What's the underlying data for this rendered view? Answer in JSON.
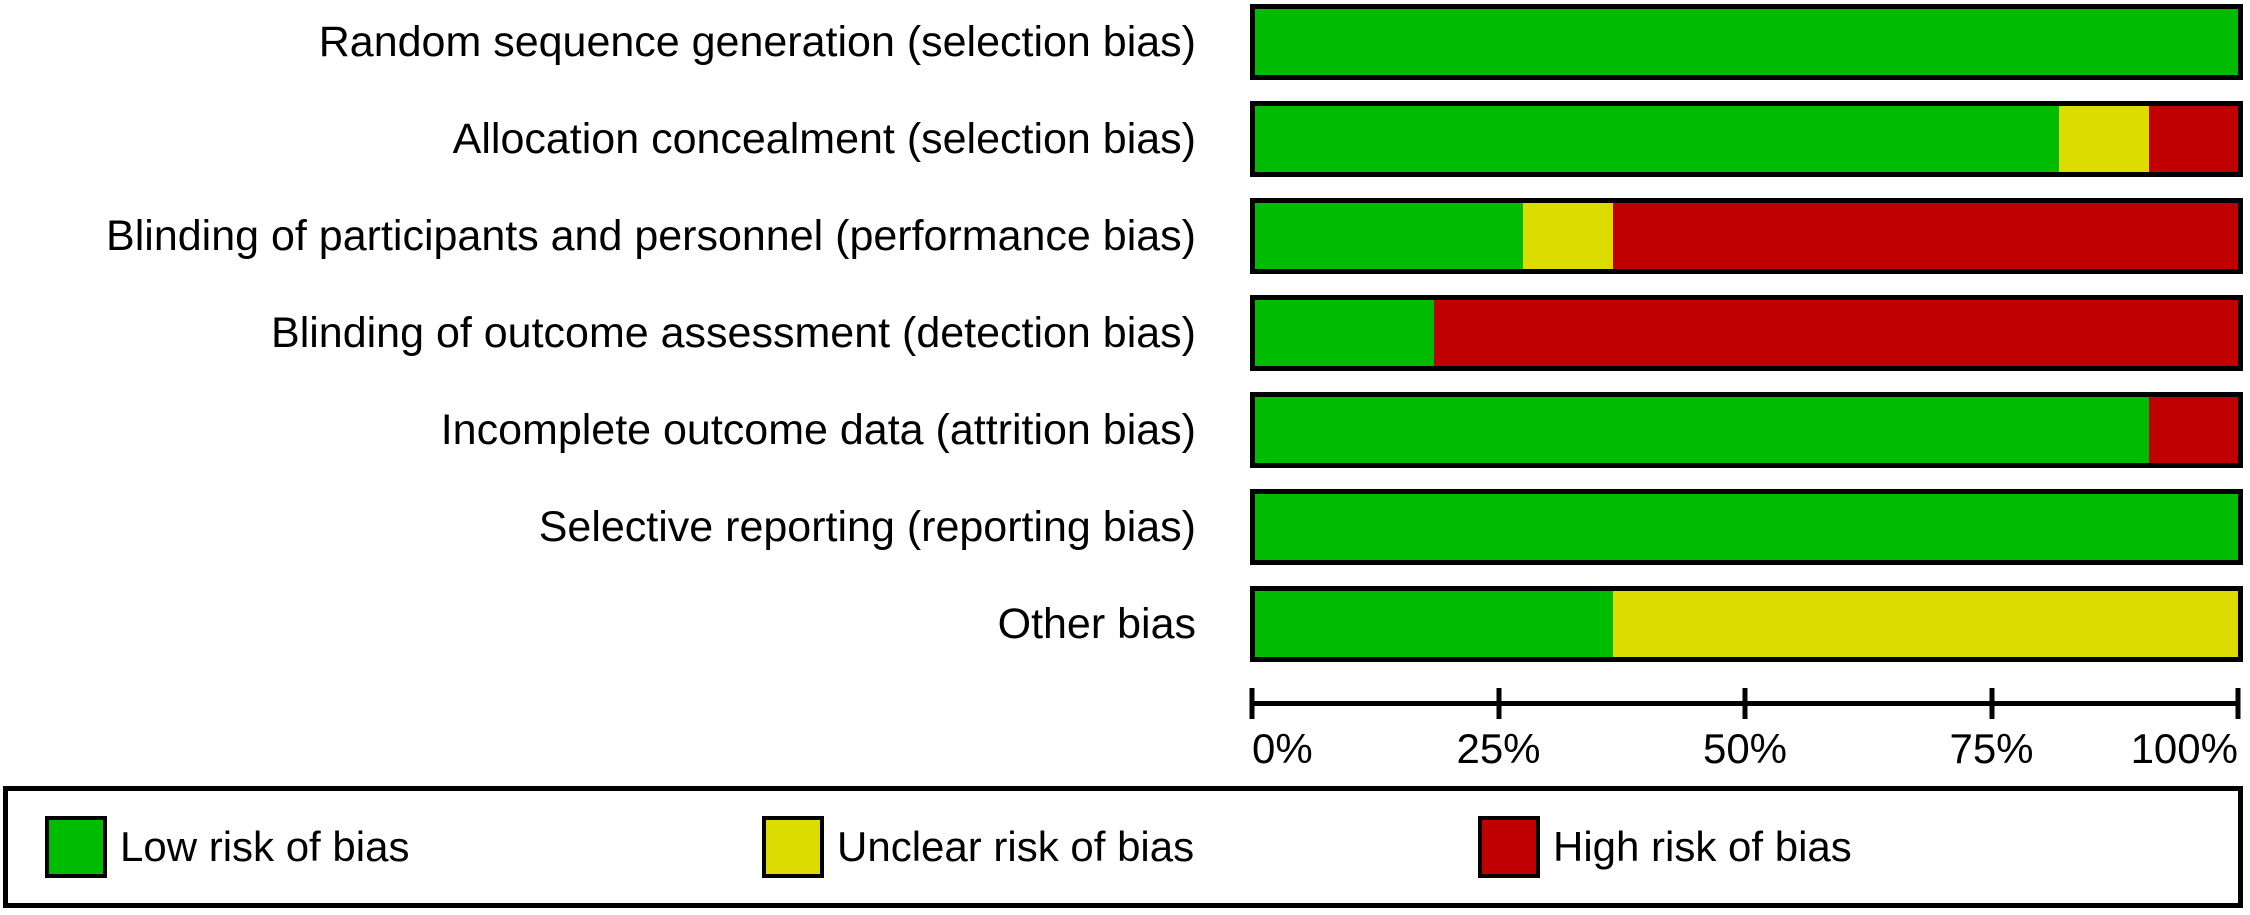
{
  "chart_data": {
    "type": "bar",
    "orientation": "horizontal",
    "stacked": true,
    "title": "",
    "xlabel": "",
    "ylabel": "",
    "xlim": [
      0,
      100
    ],
    "grid": false,
    "legend_position": "bottom",
    "categories": [
      "Random sequence generation (selection bias)",
      "Allocation concealment (selection bias)",
      "Blinding of participants and personnel (performance bias)",
      "Blinding of outcome assessment (detection bias)",
      "Incomplete outcome data (attrition bias)",
      "Selective reporting (reporting bias)",
      "Other bias"
    ],
    "series": [
      {
        "name": "Low risk of bias",
        "color": "#00bc00",
        "values": [
          100,
          81.8,
          27.3,
          18.2,
          90.9,
          100,
          36.4
        ]
      },
      {
        "name": "Unclear risk of bias",
        "color": "#dcdc00",
        "values": [
          0,
          9.1,
          9.1,
          0,
          0,
          0,
          63.6
        ]
      },
      {
        "name": "High risk of bias",
        "color": "#c00000",
        "values": [
          0,
          9.1,
          63.6,
          81.8,
          9.1,
          0,
          0
        ]
      }
    ],
    "x_ticks": [
      "0%",
      "25%",
      "50%",
      "75%",
      "100%"
    ],
    "legend": [
      {
        "label": "Low risk of bias",
        "color": "#00bc00"
      },
      {
        "label": "Unclear risk of bias",
        "color": "#dcdc00"
      },
      {
        "label": "High risk of bias",
        "color": "#c00000"
      }
    ],
    "colors": {
      "bar_border": "#000000",
      "axis": "#000000",
      "text": "#000000",
      "background": "#ffffff"
    }
  }
}
